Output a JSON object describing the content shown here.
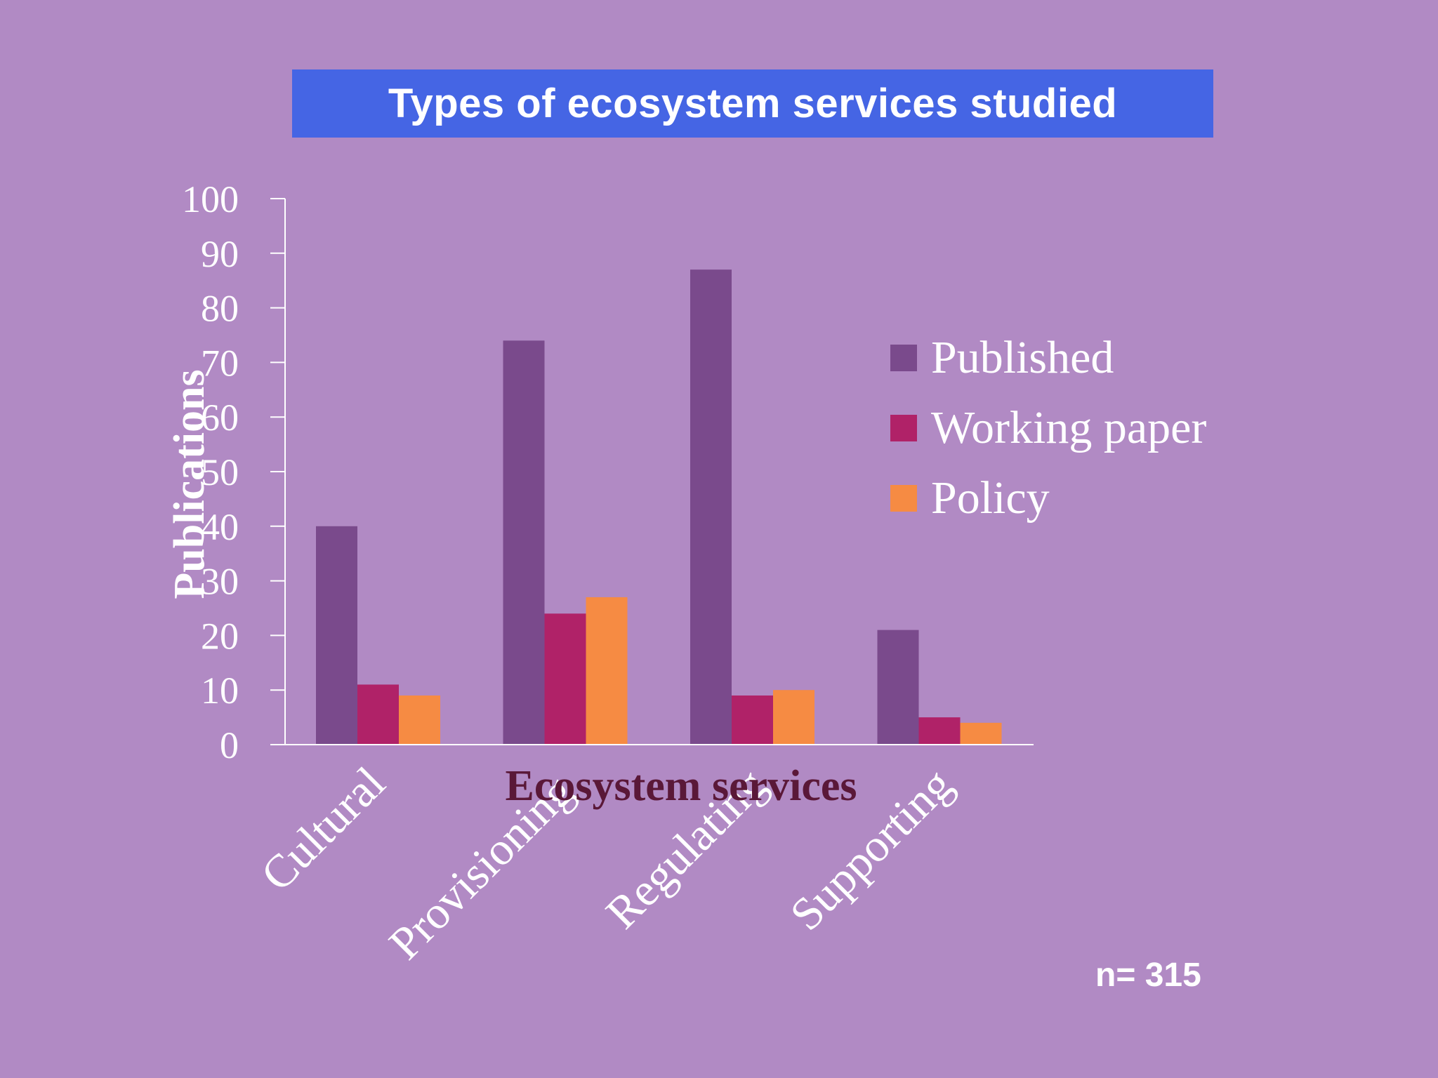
{
  "chart_data": {
    "type": "bar",
    "title": "Types of ecosystem services studied",
    "xlabel": "Ecosystem services",
    "ylabel": "Publications",
    "ylim": [
      0,
      100
    ],
    "yticks": [
      0,
      10,
      20,
      30,
      40,
      50,
      60,
      70,
      80,
      90,
      100
    ],
    "categories": [
      "Cultural",
      "Provisioning",
      "Regulating",
      "Supporting"
    ],
    "series": [
      {
        "name": "Published",
        "color": "#7a4a8c",
        "values": [
          40,
          74,
          87,
          21
        ]
      },
      {
        "name": "Working paper",
        "color": "#b02268",
        "values": [
          11,
          24,
          9,
          5
        ]
      },
      {
        "name": "Policy",
        "color": "#f68b43",
        "values": [
          9,
          27,
          10,
          4
        ]
      }
    ],
    "legend_position": "right",
    "grid": false,
    "annotation": "n= 315"
  },
  "colors": {
    "background": "#b18ac4",
    "title_banner": "#4565e4",
    "xlabel_color": "#5a1838",
    "text": "#ffffff"
  }
}
